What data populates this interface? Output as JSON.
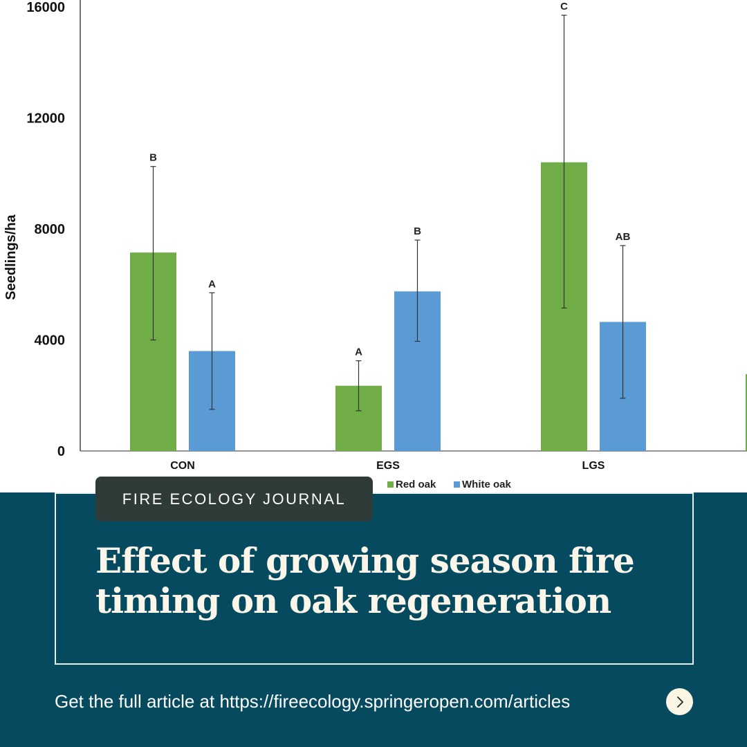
{
  "chart_data": {
    "type": "bar",
    "ylabel": "Seedlings/ha",
    "xlabel": "",
    "ylim": [
      0,
      16000
    ],
    "yticks": [
      0,
      4000,
      8000,
      12000,
      16000
    ],
    "categories": [
      "CON",
      "EGS",
      "LGS"
    ],
    "series": [
      {
        "name": "Red oak",
        "color": "#70ad47",
        "values": [
          7150,
          2350,
          10400
        ],
        "error_low": [
          4000,
          1450,
          5150
        ],
        "error_high": [
          10250,
          3250,
          15700
        ],
        "letters": [
          "B",
          "A",
          "C"
        ]
      },
      {
        "name": "White oak",
        "color": "#5b9bd5",
        "values": [
          3600,
          5750,
          4650
        ],
        "error_low": [
          1500,
          3950,
          1900
        ],
        "error_high": [
          5700,
          7600,
          7400
        ],
        "letters": [
          "A",
          "B",
          "AB"
        ]
      }
    ],
    "legend": [
      "Red oak",
      "White oak"
    ],
    "legend_position": "bottom"
  },
  "badge": {
    "label": "FIRE ECOLOGY JOURNAL"
  },
  "article": {
    "title": "Effect of growing season fire timing on oak regeneration"
  },
  "cta": {
    "text": "Get the full article at https://fireecology.springeropen.com/articles",
    "icon": "chevron-right-icon"
  },
  "colors": {
    "panel": "#054a5e",
    "badge": "#2f3b38",
    "title": "#fbf6ea",
    "button": "#fbf6e3"
  }
}
